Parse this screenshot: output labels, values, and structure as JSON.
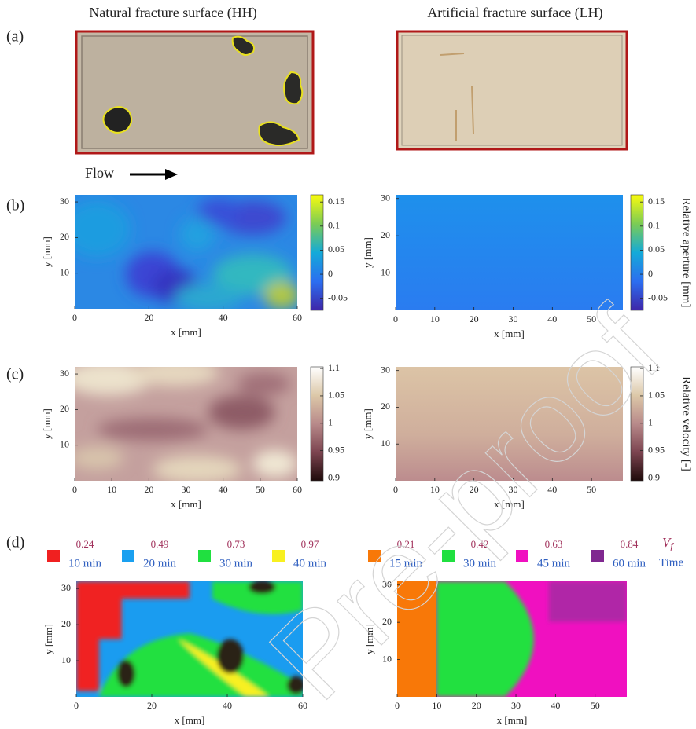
{
  "headers": [
    "Natural fracture surface (HH)",
    "Artificial fracture surface (LH)"
  ],
  "panel_labels": [
    "(a)",
    "(b)",
    "(c)",
    "(d)"
  ],
  "flow_label": "Flow",
  "watermark": "Pre-proof",
  "b": {
    "left": {
      "xlim": [
        0,
        60
      ],
      "xticks": [
        0,
        20,
        40,
        60
      ],
      "ylim": [
        0,
        32
      ],
      "yticks": [
        10,
        20,
        30
      ],
      "xlabel": "x [mm]",
      "ylabel": "y [mm]"
    },
    "right": {
      "xlim": [
        0,
        58
      ],
      "xticks": [
        0,
        10,
        20,
        30,
        40,
        50
      ],
      "ylim": [
        0,
        31
      ],
      "yticks": [
        10,
        20,
        30
      ],
      "xlabel": "x [mm]",
      "ylabel": "y [mm]"
    },
    "colorbar": {
      "label": "Relative aperture [mm]",
      "lim": [
        -0.075,
        0.165
      ],
      "ticks": [
        0.15,
        0.1,
        0.05,
        0,
        -0.05
      ]
    }
  },
  "c": {
    "left": {
      "xlim": [
        0,
        60
      ],
      "xticks": [
        0,
        10,
        20,
        30,
        40,
        50,
        60
      ],
      "ylim": [
        0,
        32
      ],
      "yticks": [
        10,
        20,
        30
      ],
      "xlabel": "x [mm]",
      "ylabel": "y [mm]"
    },
    "right": {
      "xlim": [
        0,
        58
      ],
      "xticks": [
        0,
        10,
        20,
        30,
        40,
        50
      ],
      "ylim": [
        0,
        31
      ],
      "yticks": [
        10,
        20,
        30
      ],
      "xlabel": "x [mm]",
      "ylabel": "y [mm]"
    },
    "colorbar": {
      "label": "Relative velocity [-]",
      "lim": [
        0.895,
        1.103
      ],
      "ticks": [
        1.1,
        1.05,
        1,
        0.95,
        0.9
      ]
    }
  },
  "d": {
    "left": {
      "xlim": [
        0,
        60
      ],
      "xticks": [
        0,
        20,
        40,
        60
      ],
      "ylim": [
        0,
        32
      ],
      "yticks": [
        10,
        20,
        30
      ],
      "xlabel": "x [mm]",
      "ylabel": "y [mm]"
    },
    "right": {
      "xlim": [
        0,
        58
      ],
      "xticks": [
        0,
        10,
        20,
        30,
        40,
        50
      ],
      "ylim": [
        0,
        31
      ],
      "yticks": [
        10,
        20,
        30
      ],
      "xlabel": "x [mm]",
      "ylabel": "y [mm]"
    },
    "legend_left": [
      {
        "color": "#f02020",
        "vf": 0.24,
        "time": "10 min"
      },
      {
        "color": "#1aa0f0",
        "vf": 0.49,
        "time": "20 min"
      },
      {
        "color": "#20e040",
        "vf": 0.73,
        "time": "30 min"
      },
      {
        "color": "#f8f020",
        "vf": 0.97,
        "time": "40 min"
      }
    ],
    "legend_right": [
      {
        "color": "#f87808",
        "vf": 0.21,
        "time": "15 min"
      },
      {
        "color": "#20e040",
        "vf": 0.42,
        "time": "30 min"
      },
      {
        "color": "#f010c0",
        "vf": 0.63,
        "time": "45 min"
      },
      {
        "color": "#802890",
        "vf": 0.84,
        "time": "60 min"
      }
    ],
    "vf_symbol": "V",
    "vf_subscript": "f",
    "time_title": "Time"
  }
}
